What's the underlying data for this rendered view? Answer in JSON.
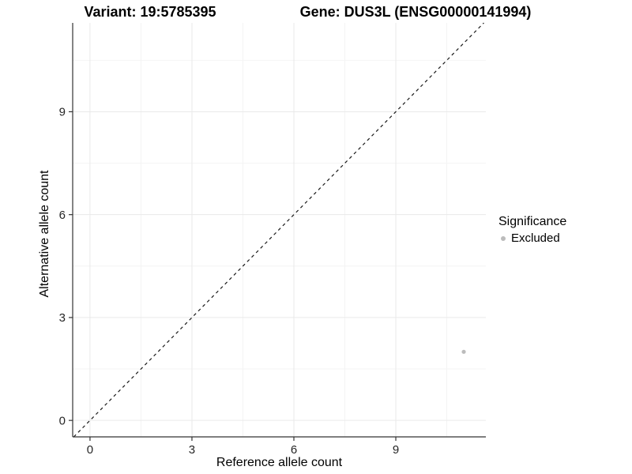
{
  "header": {
    "variant_title": "Variant: 19:5785395",
    "gene_title": "Gene: DUS3L (ENSG00000141994)"
  },
  "chart_data": {
    "type": "scatter",
    "title": "Variant: 19:5785395  /  Gene: DUS3L (ENSG00000141994)",
    "xlabel": "Reference allele count",
    "ylabel": "Alternative allele count",
    "xlim": [
      -0.51,
      11.65
    ],
    "ylim": [
      -0.48,
      11.59
    ],
    "x_ticks": [
      0,
      3,
      6,
      9
    ],
    "y_ticks": [
      0,
      3,
      6,
      9
    ],
    "x_minor_ticks": [
      1.5,
      4.5,
      7.5,
      10.5
    ],
    "y_minor_ticks": [
      1.5,
      4.5,
      7.5,
      10.5
    ],
    "grid": true,
    "identity_line": {
      "style": "dashed",
      "slope": 1,
      "intercept": 0,
      "color": "#1a1a1a"
    },
    "series": [
      {
        "name": "Excluded",
        "color": "#bcbcbc",
        "points": [
          {
            "x": 11,
            "y": 2
          }
        ]
      }
    ],
    "legend": {
      "title": "Significance",
      "position": "right",
      "items": [
        {
          "label": "Excluded",
          "color": "#bcbcbc"
        }
      ]
    }
  },
  "colors": {
    "point_excluded": "#bcbcbc",
    "axis_line": "#333333",
    "tick_label": "#262626",
    "grid_major": "#e9e9e9",
    "grid_minor": "#f4f4f4",
    "background": "#ffffff"
  }
}
